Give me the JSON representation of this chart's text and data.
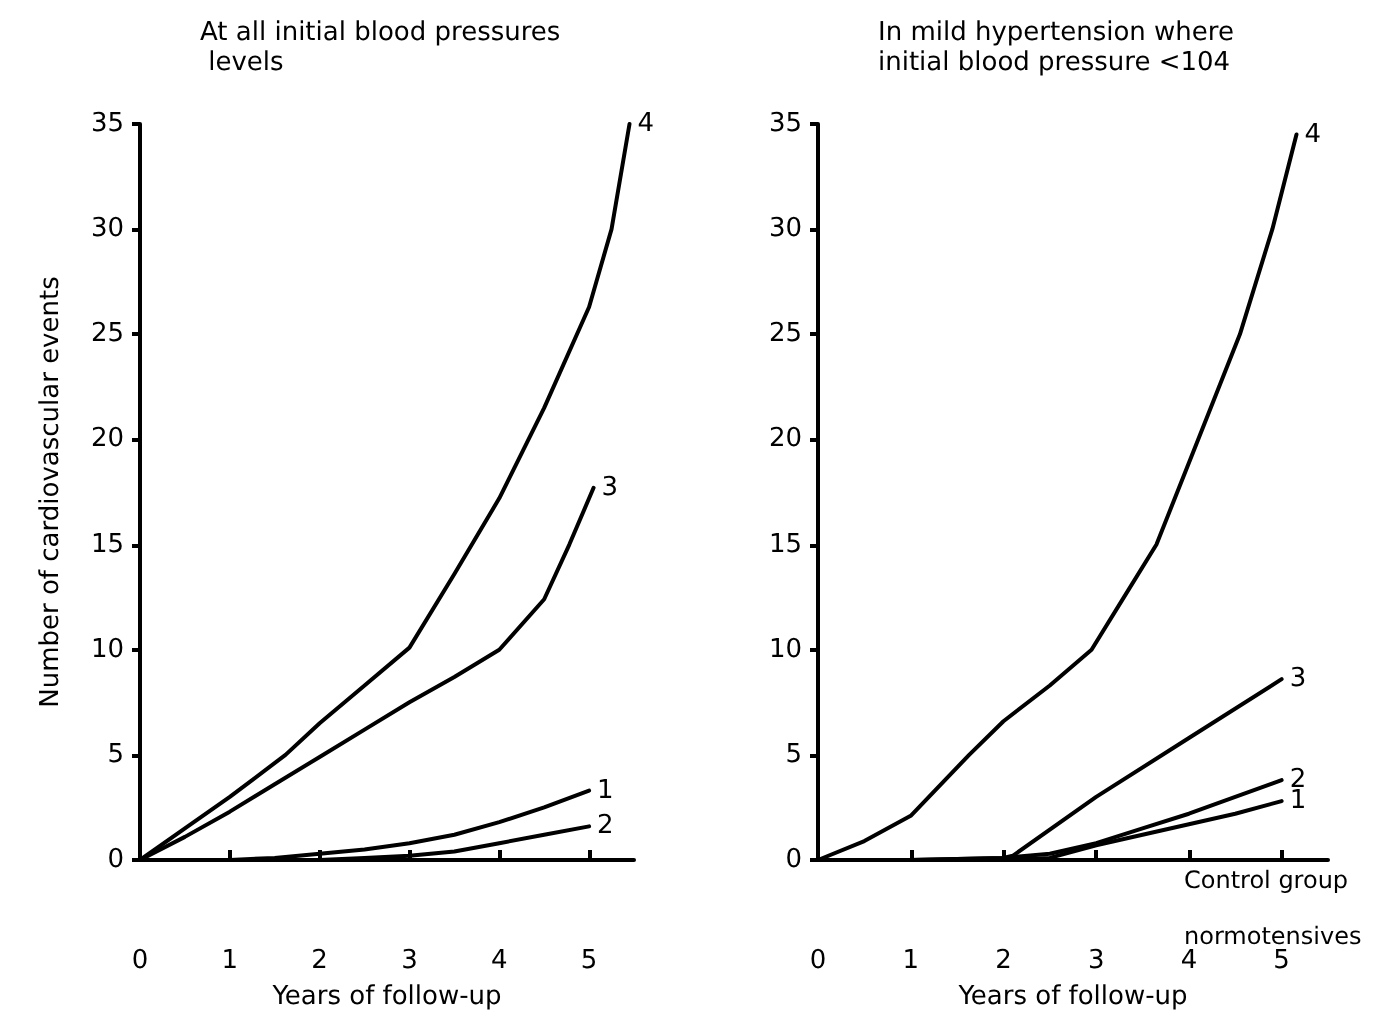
{
  "chart_data": [
    {
      "type": "line",
      "title": "At all initial blood pressures levels",
      "xlabel": "Years of follow-up",
      "ylabel": "Number of cardiovascular events",
      "xlim": [
        0,
        5.5
      ],
      "xticks": [
        0,
        1,
        2,
        3,
        4,
        5
      ],
      "ylim": [
        0,
        35
      ],
      "yticks": [
        0,
        5,
        10,
        15,
        20,
        25,
        30,
        35
      ],
      "grid": false,
      "legend": false,
      "marker": "none",
      "line_style": "solid",
      "series": [
        {
          "name": "4",
          "color": "#000000",
          "x": [
            0,
            0.5,
            1,
            1.62,
            2,
            2.5,
            3,
            3.5,
            4,
            4.5,
            5,
            5.25,
            5.45
          ],
          "values": [
            0,
            1.5,
            3,
            5,
            6.5,
            8.3,
            10.1,
            13.6,
            17.2,
            21.5,
            26.3,
            30,
            35
          ]
        },
        {
          "name": "3",
          "color": "#000000",
          "x": [
            0,
            0.5,
            1,
            1.5,
            2,
            2.5,
            3,
            3.5,
            4,
            4.5,
            4.78,
            5.05
          ],
          "values": [
            0,
            1.1,
            2.3,
            3.6,
            4.9,
            6.2,
            7.5,
            8.7,
            10,
            12.4,
            15,
            17.7
          ]
        },
        {
          "name": "1",
          "color": "#000000",
          "x": [
            0,
            1,
            1.5,
            2,
            2.5,
            3,
            3.5,
            4,
            4.5,
            5
          ],
          "values": [
            0,
            0,
            0.1,
            0.3,
            0.5,
            0.8,
            1.2,
            1.8,
            2.5,
            3.3
          ]
        },
        {
          "name": "2",
          "color": "#000000",
          "x": [
            0,
            1,
            2,
            2.5,
            3,
            3.5,
            4,
            4.5,
            5
          ],
          "values": [
            0,
            0,
            0,
            0.1,
            0.2,
            0.4,
            0.8,
            1.2,
            1.6
          ]
        }
      ]
    },
    {
      "type": "line",
      "title": "In mild hypertension where initial blood pressure <104",
      "xlabel": "Years of follow-up",
      "xlim": [
        0,
        5.5
      ],
      "xticks": [
        0,
        1,
        2,
        3,
        4,
        5
      ],
      "ylim": [
        0,
        35
      ],
      "yticks": [
        0,
        5,
        10,
        15,
        20,
        25,
        30,
        35
      ],
      "grid": false,
      "legend": false,
      "marker": "none",
      "line_style": "solid",
      "annotations": [
        "Control group normotensives"
      ],
      "series": [
        {
          "name": "4",
          "color": "#000000",
          "x": [
            0,
            0.5,
            1,
            1.63,
            2,
            2.5,
            2.95,
            3.3,
            3.65,
            4.1,
            4.55,
            4.9,
            5.16
          ],
          "values": [
            0,
            0.9,
            2.1,
            5,
            6.6,
            8.3,
            10,
            12.5,
            15,
            20,
            25,
            30,
            34.5
          ]
        },
        {
          "name": "3",
          "color": "#000000",
          "x": [
            0,
            1,
            2,
            2.1,
            3,
            4,
            5
          ],
          "values": [
            0,
            0,
            0.1,
            0.2,
            3,
            5.8,
            8.6
          ]
        },
        {
          "name": "2",
          "color": "#000000",
          "x": [
            0,
            1,
            2,
            2.5,
            3,
            3.5,
            4,
            4.5,
            5
          ],
          "values": [
            0,
            0,
            0.1,
            0.3,
            0.8,
            1.5,
            2.2,
            3,
            3.8
          ]
        },
        {
          "name": "1",
          "color": "#000000",
          "x": [
            0,
            1,
            2,
            2.5,
            3,
            3.5,
            4,
            4.5,
            5
          ],
          "values": [
            0,
            0,
            0,
            0.1,
            0.7,
            1.2,
            1.7,
            2.2,
            2.8
          ]
        }
      ]
    }
  ]
}
